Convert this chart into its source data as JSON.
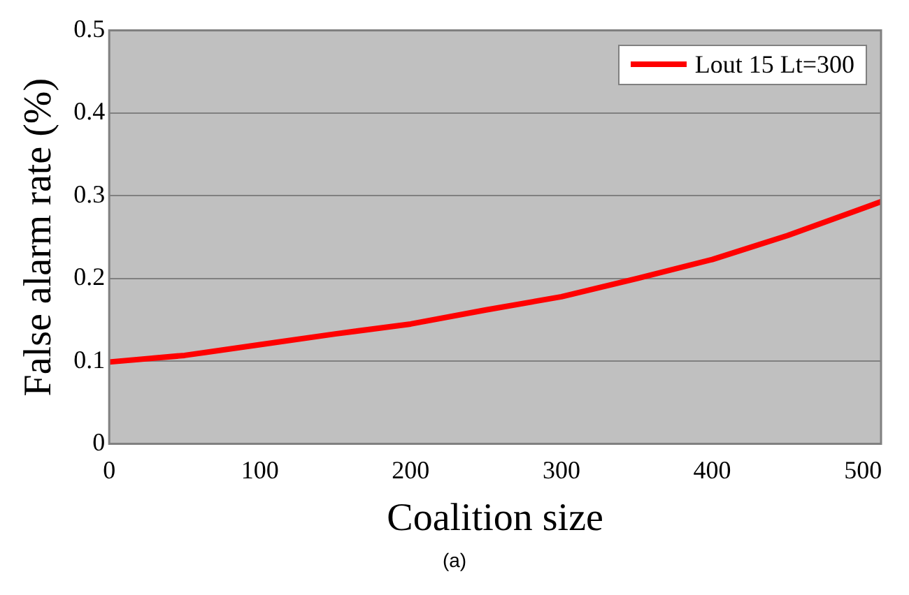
{
  "chart_data": {
    "type": "line",
    "xlabel": "Coalition size",
    "ylabel": "False alarm rate (%)",
    "annotations": [
      "(a)"
    ],
    "x": [
      0,
      50,
      100,
      150,
      200,
      250,
      300,
      350,
      400,
      450,
      500,
      512
    ],
    "series": [
      {
        "name": "Lout 15 Lt=300",
        "color": "#ff0000",
        "values": [
          0.099,
          0.107,
          0.12,
          0.133,
          0.145,
          0.162,
          0.178,
          0.2,
          0.223,
          0.252,
          0.285,
          0.293
        ]
      }
    ],
    "xlim": [
      0,
      512
    ],
    "xticks": [
      0,
      100,
      200,
      300,
      400,
      500
    ],
    "ylim": [
      0,
      0.5
    ],
    "yticks": [
      0,
      0.1,
      0.2,
      0.3,
      0.4,
      0.5
    ],
    "grid": "y",
    "legend": "top right",
    "marker": "none",
    "line_style": "solid"
  }
}
